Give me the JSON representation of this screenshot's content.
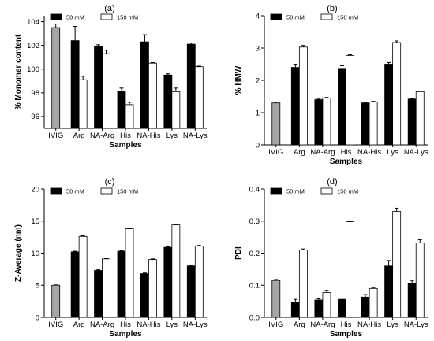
{
  "chart_data": [
    {
      "type": "bar",
      "panel_label": "(a)",
      "ylabel": "% Monomer content",
      "xlabel": "Samples",
      "ylim": [
        95,
        104.5
      ],
      "yticks": [
        96,
        98,
        100,
        102,
        104
      ],
      "categories": [
        "IVIG",
        "Arg",
        "NA-Arg",
        "His",
        "NA-His",
        "Lys",
        "NA-Lys"
      ],
      "control": {
        "name": "IVIG",
        "value": 103.5,
        "error": 0.3,
        "color": "#a6a6a6"
      },
      "series": [
        {
          "name": "50 mM",
          "color": "#000000",
          "values": [
            null,
            102.4,
            101.9,
            98.1,
            102.3,
            99.5,
            102.1
          ],
          "errors": [
            null,
            1.2,
            0.15,
            0.3,
            0.6,
            0.1,
            0.1
          ]
        },
        {
          "name": "150 mM",
          "color": "#ffffff",
          "values": [
            null,
            99.1,
            101.3,
            97.0,
            100.5,
            98.1,
            100.2
          ],
          "errors": [
            null,
            0.3,
            0.3,
            0.2,
            0.05,
            0.3,
            0.05
          ]
        }
      ],
      "legend": "top"
    },
    {
      "type": "bar",
      "panel_label": "(b)",
      "ylabel": "% HMW",
      "xlabel": "Samples",
      "ylim": [
        0,
        4
      ],
      "yticks": [
        0,
        1,
        2,
        3,
        4
      ],
      "categories": [
        "IVIG",
        "Arg",
        "NA-Arg",
        "His",
        "NA-His",
        "Lys",
        "NA-Lys"
      ],
      "control": {
        "name": "IVIG",
        "value": 1.3,
        "error": 0.03,
        "color": "#a6a6a6"
      },
      "series": [
        {
          "name": "50 mM",
          "color": "#000000",
          "values": [
            null,
            2.4,
            1.4,
            2.37,
            1.3,
            2.5,
            1.42
          ],
          "errors": [
            null,
            0.1,
            0.02,
            0.08,
            0.02,
            0.05,
            0.02
          ]
        },
        {
          "name": "150 mM",
          "color": "#ffffff",
          "values": [
            null,
            3.03,
            1.45,
            2.77,
            1.33,
            3.17,
            1.65
          ],
          "errors": [
            null,
            0.05,
            0.02,
            0.02,
            0.02,
            0.05,
            0.02
          ]
        }
      ],
      "legend": "top"
    },
    {
      "type": "bar",
      "panel_label": "(c)",
      "ylabel": "Z-Average (nm)",
      "xlabel": "Samples",
      "ylim": [
        0,
        20
      ],
      "yticks": [
        0,
        5,
        10,
        15,
        20
      ],
      "categories": [
        "IVIG",
        "Arg",
        "NA-Arg",
        "His",
        "NA-His",
        "Lys",
        "NA-Lys"
      ],
      "control": {
        "name": "IVIG",
        "value": 5.0,
        "error": 0.05,
        "color": "#a6a6a6"
      },
      "series": [
        {
          "name": "50 mM",
          "color": "#000000",
          "values": [
            null,
            10.2,
            7.3,
            10.3,
            6.8,
            10.9,
            8.0
          ],
          "errors": [
            null,
            0.1,
            0.1,
            0.1,
            0.1,
            0.1,
            0.1
          ]
        },
        {
          "name": "150 mM",
          "color": "#ffffff",
          "values": [
            null,
            12.6,
            9.1,
            13.8,
            9.0,
            14.4,
            11.1
          ],
          "errors": [
            null,
            0.1,
            0.1,
            0.05,
            0.1,
            0.1,
            0.1
          ]
        }
      ],
      "legend": "top"
    },
    {
      "type": "bar",
      "panel_label": "(d)",
      "ylabel": "PDI",
      "xlabel": "Samples",
      "ylim": [
        0,
        0.4
      ],
      "yticks": [
        0.0,
        0.1,
        0.2,
        0.3,
        0.4
      ],
      "categories": [
        "IVIG",
        "Arg",
        "NA-Arg",
        "His",
        "NA-His",
        "Lys",
        "NA-Lys"
      ],
      "control": {
        "name": "IVIG",
        "value": 0.115,
        "error": 0.003,
        "color": "#a6a6a6"
      },
      "series": [
        {
          "name": "50 mM",
          "color": "#000000",
          "values": [
            null,
            0.048,
            0.054,
            0.056,
            0.063,
            0.16,
            0.107
          ],
          "errors": [
            null,
            0.008,
            0.004,
            0.004,
            0.008,
            0.017,
            0.008
          ]
        },
        {
          "name": "150 mM",
          "color": "#ffffff",
          "values": [
            null,
            0.21,
            0.077,
            0.298,
            0.09,
            0.33,
            0.232
          ],
          "errors": [
            null,
            0.003,
            0.007,
            0.002,
            0.003,
            0.01,
            0.01
          ]
        }
      ],
      "legend": "top"
    }
  ]
}
